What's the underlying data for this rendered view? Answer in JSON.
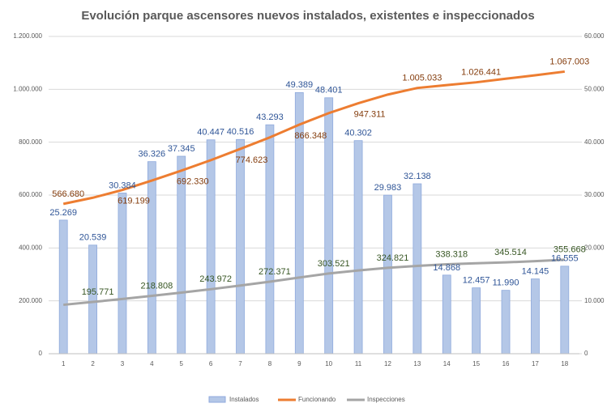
{
  "chart_data": {
    "type": "bar-line",
    "title": "Evolución parque ascensores nuevos instalados, existentes e inspeccionados",
    "categories": [
      "1",
      "2",
      "3",
      "4",
      "5",
      "6",
      "7",
      "8",
      "9",
      "10",
      "11",
      "12",
      "13",
      "14",
      "15",
      "16",
      "17",
      "18"
    ],
    "ylim": [
      0,
      1200000
    ],
    "yticks": [
      0,
      {
        "value": 200000,
        "label": "200.000"
      },
      {
        "value": 400000,
        "label": "400.000"
      },
      {
        "value": 600000,
        "label": "600.000"
      },
      {
        "value": 800000,
        "label": "800.000"
      },
      {
        "value": 1000000,
        "label": "1.000.000"
      },
      {
        "value": 1200000,
        "label": "1.200.000"
      }
    ],
    "y2lim": [
      0,
      60000
    ],
    "y2ticks": [
      0,
      {
        "value": 10000,
        "label": "10.000"
      },
      {
        "value": 20000,
        "label": "20.000"
      },
      {
        "value": 30000,
        "label": "30.000"
      },
      {
        "value": 40000,
        "label": "40.000"
      },
      {
        "value": 50000,
        "label": "50.000"
      },
      {
        "value": 60000,
        "label": "60.000"
      }
    ],
    "series": [
      {
        "name": "Instalados",
        "type": "bar",
        "axis": "y2",
        "color": "#b4c7e7",
        "label_color": "#2f5597",
        "values": [
          25269,
          20539,
          30384,
          36326,
          37345,
          40447,
          40516,
          43293,
          49389,
          48401,
          40302,
          29983,
          32138,
          14868,
          12457,
          11990,
          14145,
          16555
        ],
        "value_labels": [
          "25.269",
          "20.539",
          "30.384",
          "36.326",
          "37.345",
          "40.447",
          "40.516",
          "43.293",
          "49.389",
          "48.401",
          "40.302",
          "29.983",
          "32.138",
          "14.868",
          "12.457",
          "11.990",
          "14.145",
          "16.555"
        ]
      },
      {
        "name": "Funcionando",
        "type": "line",
        "color": "#ed7d31",
        "label_color": "#843c0c",
        "values": [
          566680,
          590000,
          619199,
          655000,
          692330,
          732000,
          774623,
          818000,
          866348,
          910000,
          947311,
          980000,
          1005033,
          1016000,
          1026441,
          1040000,
          1053000,
          1067003
        ],
        "value_labels": [
          "566.680",
          null,
          "619.199",
          null,
          "692.330",
          null,
          "774.623",
          null,
          "866.348",
          null,
          "947.311",
          null,
          "1.005.033",
          null,
          "1.026.441",
          null,
          null,
          "1.067.003"
        ]
      },
      {
        "name": "Inspecciones",
        "type": "line",
        "color": "#a5a5a5",
        "label_color": "#375623",
        "values": [
          185000,
          195771,
          207000,
          218808,
          231000,
          243972,
          258000,
          272371,
          288000,
          303521,
          315000,
          324821,
          332000,
          338318,
          342000,
          345514,
          350000,
          355668
        ],
        "value_labels": [
          null,
          "195.771",
          null,
          "218.808",
          null,
          "243.972",
          null,
          "272.371",
          null,
          "303.521",
          null,
          "324.821",
          null,
          "338.318",
          null,
          "345.514",
          null,
          "355.668"
        ]
      }
    ]
  }
}
